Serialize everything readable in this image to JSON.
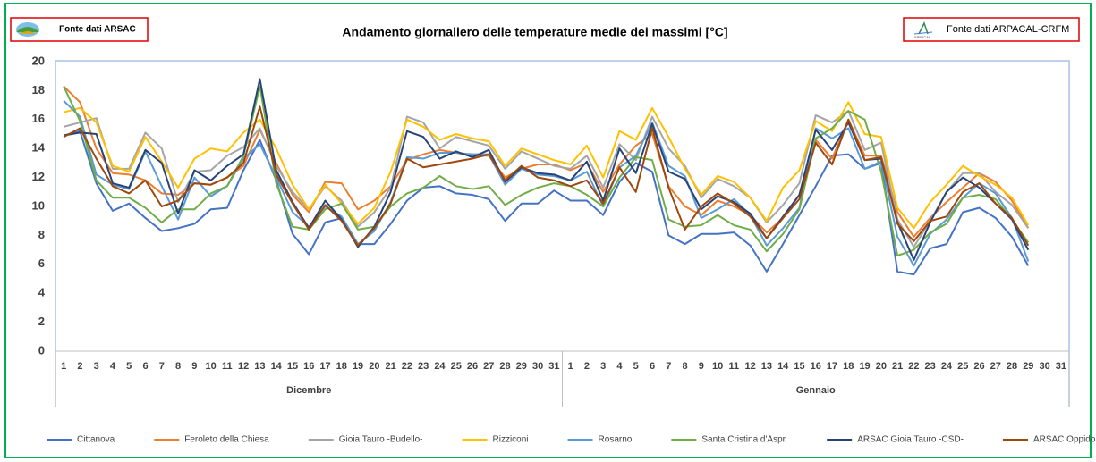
{
  "chart_data": {
    "type": "line",
    "title": "Andamento giornaliero delle temperature medie dei massimi [°C]",
    "sources": [
      "Fonte dati ARSAC",
      "Fonte dati ARPACAL-CRFM"
    ],
    "logo_text": "ARPACAL",
    "category_groups": [
      "Dicembre",
      "Gennaio"
    ],
    "categories": [
      1,
      2,
      3,
      4,
      5,
      6,
      7,
      8,
      9,
      10,
      11,
      12,
      13,
      14,
      15,
      16,
      17,
      18,
      19,
      20,
      21,
      22,
      23,
      24,
      25,
      26,
      27,
      28,
      29,
      30,
      31,
      1,
      2,
      3,
      4,
      5,
      6,
      7,
      8,
      9,
      10,
      11,
      12,
      13,
      14,
      15,
      16,
      17,
      18,
      19,
      20,
      21,
      22,
      23,
      24,
      25,
      26,
      27,
      28,
      29,
      30,
      31
    ],
    "ylim": [
      0,
      20
    ],
    "yticks": [
      0,
      2,
      4,
      6,
      8,
      10,
      12,
      14,
      16,
      18,
      20
    ],
    "grid": false,
    "legend": "bottom",
    "series": [
      {
        "name": "Cittanova",
        "color": "#4472c4",
        "values": [
          14.9,
          15.2,
          11.6,
          9.7,
          10.2,
          9.2,
          8.3,
          8.5,
          8.8,
          9.8,
          9.9,
          12.5,
          14.6,
          11.8,
          8.1,
          6.7,
          8.9,
          9.2,
          7.4,
          7.4,
          8.8,
          10.4,
          11.3,
          11.4,
          10.9,
          10.8,
          10.5,
          9.0,
          10.2,
          10.2,
          11.1,
          10.4,
          10.4,
          9.4,
          11.7,
          13.0,
          12.4,
          8.0,
          7.4,
          8.1,
          8.1,
          8.2,
          7.3,
          5.5,
          7.4,
          9.4,
          11.4,
          13.5,
          13.6,
          12.6,
          13.0,
          5.5,
          5.3,
          7.1,
          7.4,
          9.6,
          9.9,
          9.2,
          7.9,
          5.9,
          null,
          null
        ]
      },
      {
        "name": "Feroleto della Chiesa",
        "color": "#ed7d31",
        "values": [
          18.3,
          17.2,
          14.0,
          12.3,
          12.2,
          11.8,
          10.9,
          10.8,
          11.6,
          11.5,
          12.0,
          12.8,
          15.3,
          13.0,
          10.8,
          9.6,
          11.7,
          11.6,
          9.8,
          10.4,
          11.4,
          13.2,
          13.6,
          13.9,
          13.7,
          13.5,
          13.5,
          12.0,
          12.6,
          12.9,
          12.9,
          12.5,
          13.0,
          11.0,
          12.9,
          14.2,
          15.0,
          11.4,
          10.0,
          9.4,
          10.4,
          10.0,
          9.4,
          8.2,
          9.2,
          10.8,
          14.6,
          13.3,
          16.0,
          13.5,
          13.5,
          9.6,
          7.9,
          9.2,
          10.3,
          11.3,
          12.3,
          11.7,
          10.4,
          8.5,
          null,
          null
        ]
      },
      {
        "name": "Gioia Tauro -Budello-",
        "color": "#a5a5a5",
        "values": [
          15.5,
          15.8,
          16.1,
          12.6,
          12.6,
          15.1,
          14.0,
          10.3,
          12.4,
          12.5,
          13.5,
          14.1,
          15.4,
          12.8,
          11.0,
          9.8,
          11.4,
          10.4,
          8.6,
          9.6,
          11.3,
          16.2,
          15.8,
          14.0,
          14.8,
          14.5,
          14.2,
          12.6,
          13.8,
          13.3,
          12.8,
          12.6,
          13.5,
          11.3,
          14.3,
          13.2,
          16.2,
          14.0,
          12.8,
          10.6,
          11.9,
          11.4,
          10.6,
          8.9,
          10.1,
          11.6,
          16.3,
          15.8,
          16.6,
          13.9,
          14.4,
          9.1,
          7.2,
          9.0,
          11.0,
          12.3,
          12.3,
          11.0,
          10.1,
          8.5,
          null,
          null
        ]
      },
      {
        "name": "Rizziconi",
        "color": "#ffc000",
        "values": [
          16.5,
          16.8,
          15.8,
          12.8,
          12.4,
          14.8,
          13.1,
          11.3,
          13.3,
          14.0,
          13.8,
          15.1,
          16.0,
          14.0,
          11.5,
          9.8,
          11.5,
          10.2,
          8.8,
          9.9,
          12.4,
          16.0,
          15.5,
          14.6,
          15.0,
          14.7,
          14.5,
          12.8,
          14.0,
          13.6,
          13.2,
          12.9,
          14.2,
          12.0,
          15.2,
          14.6,
          16.8,
          14.8,
          12.6,
          10.8,
          12.1,
          11.7,
          10.6,
          9.0,
          11.3,
          12.5,
          15.9,
          15.2,
          17.2,
          15.0,
          14.8,
          9.9,
          8.5,
          10.3,
          11.5,
          12.8,
          12.1,
          11.5,
          10.6,
          8.7,
          null,
          null
        ]
      },
      {
        "name": "Rosarno",
        "color": "#5b9bd5",
        "values": [
          17.3,
          16.2,
          12.2,
          11.5,
          11.2,
          13.8,
          11.4,
          9.1,
          12.0,
          10.7,
          11.4,
          13.3,
          14.3,
          12.0,
          9.6,
          8.6,
          10.0,
          9.3,
          7.4,
          8.3,
          10.3,
          13.4,
          13.3,
          13.7,
          13.7,
          13.6,
          13.6,
          11.5,
          12.6,
          12.2,
          12.1,
          11.8,
          12.4,
          10.0,
          12.7,
          13.5,
          15.8,
          12.8,
          12.1,
          9.2,
          9.8,
          10.5,
          9.4,
          7.3,
          8.5,
          9.9,
          15.4,
          14.7,
          15.4,
          12.6,
          13.1,
          7.9,
          5.9,
          8.1,
          9.1,
          10.6,
          11.6,
          10.9,
          9.2,
          6.2,
          null,
          null
        ]
      },
      {
        "name": "Santa Cristina d'Aspr.",
        "color": "#70ad47",
        "values": [
          18.3,
          15.9,
          11.8,
          10.6,
          10.6,
          9.9,
          8.9,
          9.8,
          9.8,
          10.9,
          11.4,
          13.5,
          18.3,
          11.6,
          8.6,
          8.4,
          9.8,
          10.2,
          8.4,
          8.6,
          10.0,
          10.9,
          11.3,
          12.1,
          11.4,
          11.2,
          11.4,
          10.1,
          10.8,
          11.3,
          11.6,
          11.4,
          10.8,
          10.0,
          12.0,
          13.4,
          13.2,
          9.1,
          8.6,
          8.7,
          9.4,
          8.7,
          8.4,
          6.9,
          8.1,
          9.8,
          14.7,
          15.4,
          16.6,
          16.0,
          12.4,
          6.6,
          7.0,
          8.2,
          8.8,
          10.6,
          10.8,
          10.5,
          9.1,
          7.5,
          null,
          null
        ]
      },
      {
        "name": "ARSAC Gioia Tauro -CSD-",
        "color": "#264478",
        "values": [
          14.9,
          15.1,
          15.0,
          11.6,
          11.3,
          13.9,
          13.0,
          9.5,
          12.5,
          11.8,
          12.8,
          13.6,
          18.8,
          12.5,
          10.3,
          8.5,
          10.4,
          9.1,
          7.2,
          8.6,
          11.0,
          15.2,
          14.8,
          13.3,
          13.8,
          13.4,
          13.9,
          11.7,
          12.7,
          12.3,
          12.2,
          11.8,
          13.1,
          10.4,
          14.0,
          12.3,
          15.7,
          12.4,
          11.9,
          9.8,
          10.7,
          10.3,
          9.5,
          7.8,
          9.3,
          10.8,
          15.3,
          13.9,
          15.8,
          13.2,
          13.3,
          8.9,
          6.3,
          8.9,
          11.0,
          12.0,
          11.3,
          10.2,
          9.1,
          7.0,
          null,
          null
        ]
      },
      {
        "name": "ARSAC Oppido Mamertina",
        "color": "#9e480e",
        "values": [
          14.8,
          15.4,
          13.3,
          11.4,
          10.9,
          11.8,
          10.0,
          10.4,
          11.6,
          11.5,
          12.0,
          13.0,
          16.9,
          12.2,
          10.2,
          8.4,
          10.1,
          9.0,
          7.3,
          8.5,
          10.2,
          13.3,
          12.7,
          12.9,
          13.1,
          13.3,
          13.6,
          11.8,
          12.8,
          12.0,
          11.8,
          11.4,
          11.8,
          10.2,
          12.7,
          11.0,
          15.4,
          11.3,
          8.4,
          10.0,
          10.9,
          10.2,
          9.3,
          7.8,
          9.2,
          10.5,
          14.4,
          12.9,
          16.0,
          13.2,
          13.4,
          8.8,
          7.6,
          9.0,
          9.3,
          11.0,
          11.6,
          10.2,
          9.2,
          7.3,
          null,
          null
        ]
      }
    ]
  }
}
